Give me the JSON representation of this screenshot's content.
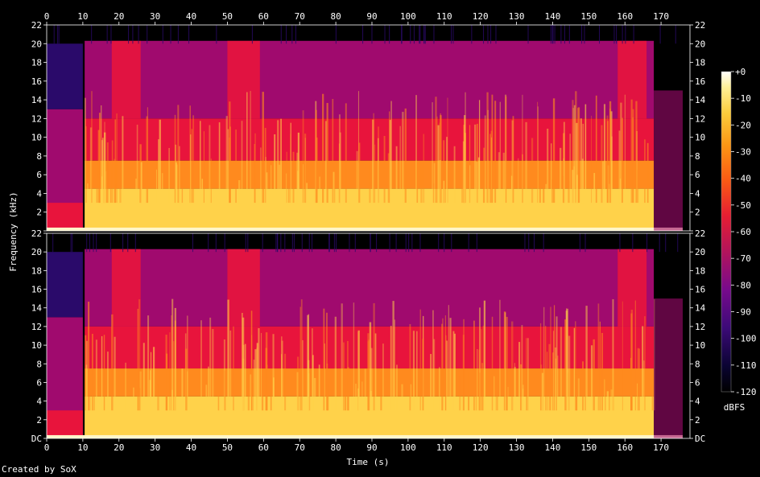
{
  "chart_data": {
    "type": "heatmap",
    "xlabel": "Time (s)",
    "ylabel": "Frequency (kHz)",
    "x_ticks": [
      0,
      10,
      20,
      30,
      40,
      50,
      60,
      70,
      80,
      90,
      100,
      110,
      120,
      130,
      140,
      150,
      160,
      170
    ],
    "xlim": [
      0,
      178
    ],
    "y_ticks": [
      "DC",
      "2",
      "4",
      "6",
      "8",
      "10",
      "12",
      "14",
      "16",
      "18",
      "20",
      "22"
    ],
    "ylim_khz": [
      0,
      22
    ],
    "channels": [
      "channel-1",
      "channel-2"
    ],
    "colorbar": {
      "label": "dBFS",
      "ticks": [
        "+0",
        "-10",
        "-20",
        "-30",
        "-40",
        "-50",
        "-60",
        "-70",
        "-80",
        "-90",
        "-100",
        "-110",
        "-120"
      ],
      "range_db": [
        -120,
        0
      ],
      "colors": [
        "#000000",
        "#1a0a5a",
        "#4a0a8a",
        "#8a0a8a",
        "#c8145a",
        "#f02828",
        "#fa6414",
        "#fca014",
        "#fcd23c",
        "#fff5a0",
        "#ffffff"
      ]
    },
    "spectrum_colors": {
      "background": "#000000",
      "low_band": "#ffd24a",
      "mid_band": "#ff8a1e",
      "upper_band": "#e8143c",
      "top_band": "#a00a6e",
      "cutoff": "#2a0a6a"
    }
  },
  "footer": {
    "credit": "Created by SoX"
  }
}
